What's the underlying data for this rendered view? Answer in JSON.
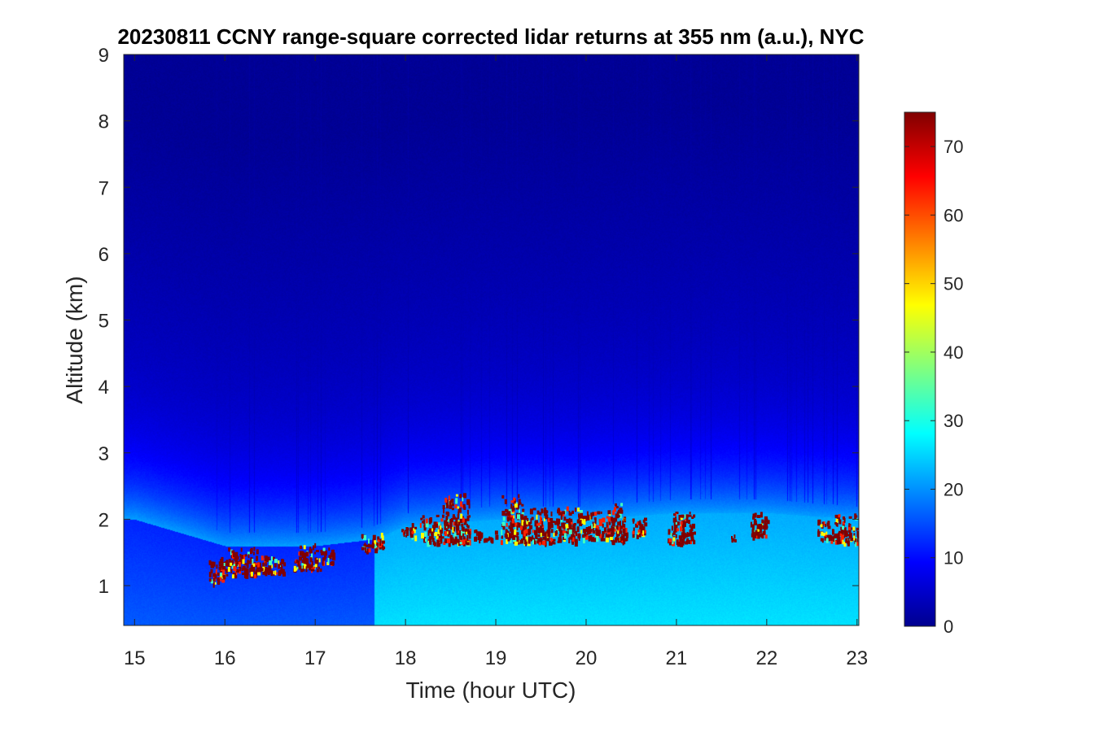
{
  "chart_data": {
    "type": "heatmap",
    "title": "20230811 CCNY range-square corrected lidar returns at 355 nm (a.u.), NYC",
    "xlabel": "Time (hour UTC)",
    "ylabel": "Altitude (km)",
    "xlim": [
      14.88,
      23.02
    ],
    "ylim": [
      0.4,
      9
    ],
    "xticks": [
      15,
      16,
      17,
      18,
      19,
      20,
      21,
      22,
      23
    ],
    "yticks": [
      1,
      2,
      3,
      4,
      5,
      6,
      7,
      8,
      9
    ],
    "colorbar": {
      "range": [
        0,
        75
      ],
      "ticks": [
        0,
        10,
        20,
        30,
        40,
        50,
        60,
        70
      ],
      "colormap": "jet"
    },
    "features": {
      "boundary_layer_top_km": [
        {
          "time": 15.0,
          "alt": 2.0
        },
        {
          "time": 16.0,
          "alt": 1.6
        },
        {
          "time": 17.0,
          "alt": 1.6
        },
        {
          "time": 17.65,
          "alt": 1.7
        },
        {
          "time": 18.0,
          "alt": 1.9
        },
        {
          "time": 19.0,
          "alt": 2.0
        },
        {
          "time": 20.0,
          "alt": 2.0
        },
        {
          "time": 21.0,
          "alt": 2.1
        },
        {
          "time": 22.0,
          "alt": 2.1
        },
        {
          "time": 23.0,
          "alt": 2.0
        }
      ],
      "signal_step_time": 17.65,
      "cloud_segments": [
        {
          "t0": 15.82,
          "t1": 16.02,
          "a0": 1.05,
          "a1": 1.45
        },
        {
          "t0": 16.02,
          "t1": 16.35,
          "a0": 1.15,
          "a1": 1.6
        },
        {
          "t0": 16.35,
          "t1": 16.65,
          "a0": 1.2,
          "a1": 1.5
        },
        {
          "t0": 16.75,
          "t1": 17.05,
          "a0": 1.25,
          "a1": 1.65
        },
        {
          "t0": 17.05,
          "t1": 17.2,
          "a0": 1.35,
          "a1": 1.6
        },
        {
          "t0": 17.5,
          "t1": 17.75,
          "a0": 1.55,
          "a1": 1.8
        },
        {
          "t0": 17.95,
          "t1": 18.1,
          "a0": 1.75,
          "a1": 1.95
        },
        {
          "t0": 18.15,
          "t1": 18.4,
          "a0": 1.65,
          "a1": 2.1
        },
        {
          "t0": 18.4,
          "t1": 18.7,
          "a0": 1.65,
          "a1": 2.4
        },
        {
          "t0": 18.75,
          "t1": 19.0,
          "a0": 1.7,
          "a1": 1.85
        },
        {
          "t0": 19.05,
          "t1": 19.3,
          "a0": 1.65,
          "a1": 2.4
        },
        {
          "t0": 19.3,
          "t1": 19.65,
          "a0": 1.65,
          "a1": 2.2
        },
        {
          "t0": 19.65,
          "t1": 19.95,
          "a0": 1.65,
          "a1": 2.2
        },
        {
          "t0": 19.95,
          "t1": 20.25,
          "a0": 1.7,
          "a1": 2.15
        },
        {
          "t0": 20.25,
          "t1": 20.45,
          "a0": 1.65,
          "a1": 2.25
        },
        {
          "t0": 20.5,
          "t1": 20.65,
          "a0": 1.75,
          "a1": 2.1
        },
        {
          "t0": 20.9,
          "t1": 21.2,
          "a0": 1.65,
          "a1": 2.15
        },
        {
          "t0": 21.6,
          "t1": 21.65,
          "a0": 1.7,
          "a1": 1.85
        },
        {
          "t0": 21.8,
          "t1": 22.0,
          "a0": 1.75,
          "a1": 2.15
        },
        {
          "t0": 22.55,
          "t1": 22.75,
          "a0": 1.7,
          "a1": 2.0
        },
        {
          "t0": 22.75,
          "t1": 23.02,
          "a0": 1.65,
          "a1": 2.1
        }
      ]
    }
  }
}
